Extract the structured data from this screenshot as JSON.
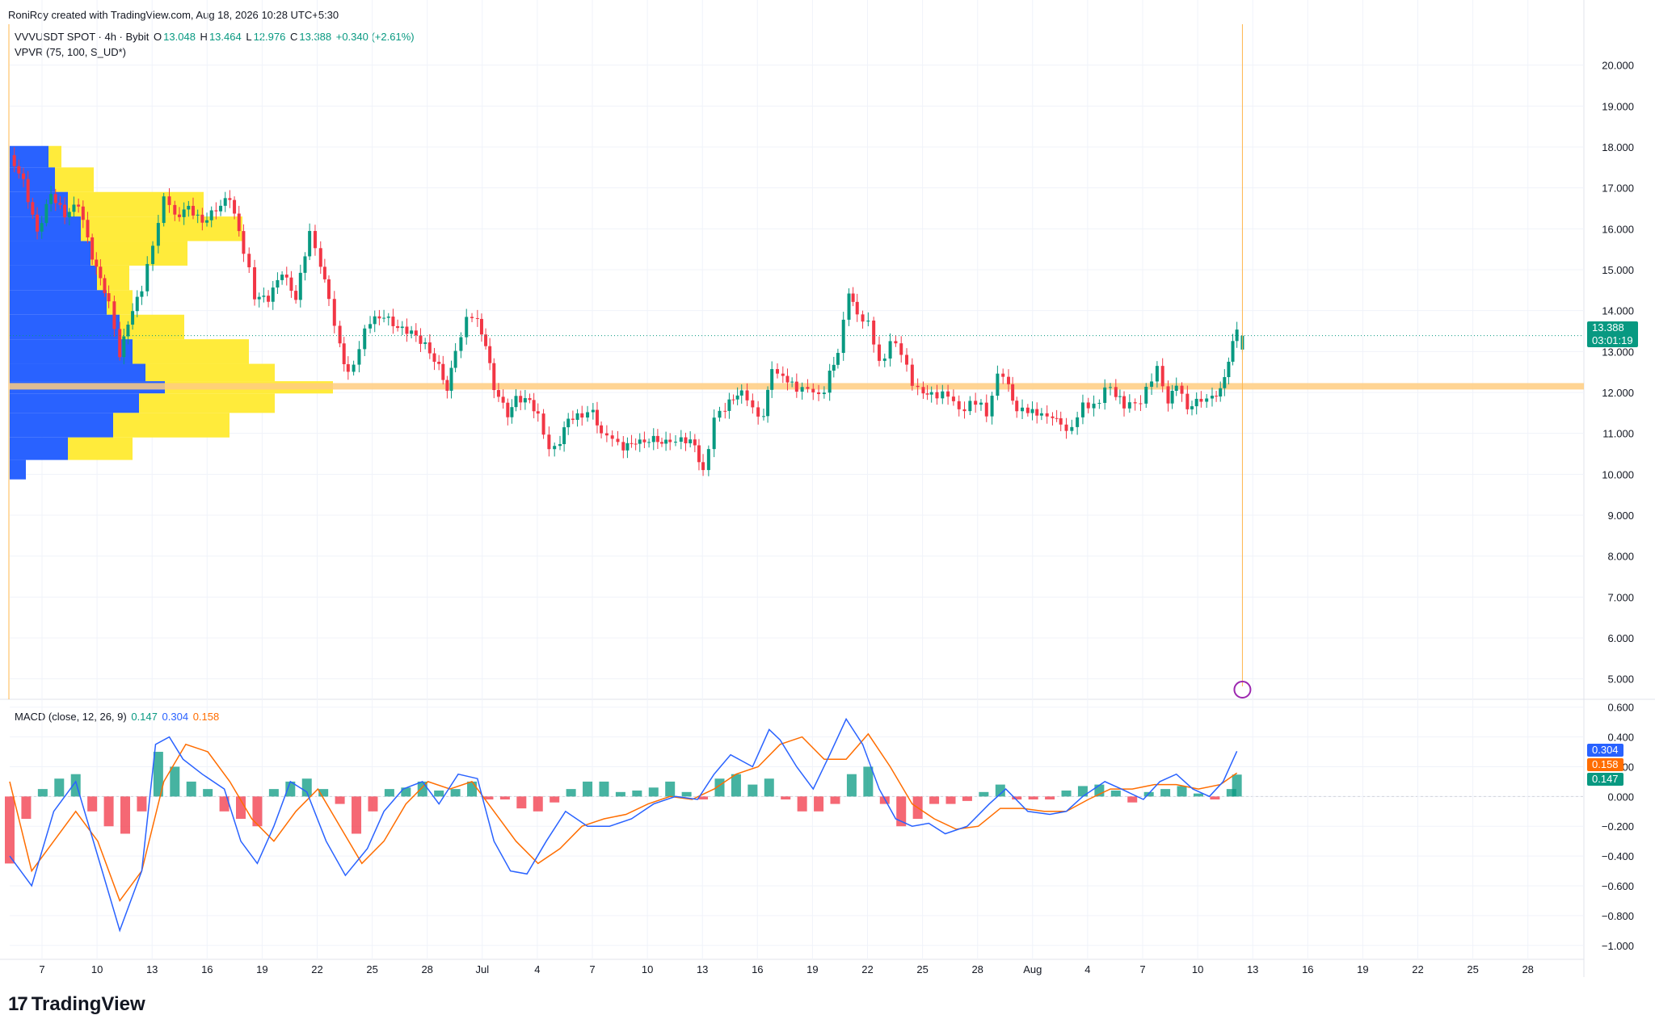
{
  "header": {
    "text": "RoniRoy created with TradingView.com, Aug 18, 2026 10:28 UTC+5:30"
  },
  "legend_main": {
    "symbol": "VVVUSDT SPOT · 4h · Bybit",
    "o_label": "O",
    "o": "13.048",
    "h_label": "H",
    "h": "13.464",
    "l_label": "L",
    "l": "12.976",
    "c_label": "C",
    "c": "13.388",
    "change": "+0.340 (+2.61%)"
  },
  "legend_vpvr": {
    "text": "VPVR (75, 100, S_UD*)"
  },
  "legend_macd": {
    "name": "MACD (close, 12, 26, 9)",
    "hist": "0.147",
    "macd": "0.304",
    "signal": "0.158"
  },
  "price_tag": {
    "price": "13.388",
    "countdown": "03:01:19"
  },
  "macd_tags": {
    "macd": "0.304",
    "signal": "0.158",
    "hist": "0.147"
  },
  "colors": {
    "up": "#089981",
    "down": "#f23645",
    "macd": "#2962ff",
    "signal": "#ff6d00",
    "vp_up": "#2962ff",
    "vp_down": "#ffeb3b",
    "poc": "#ffcc80",
    "grid": "#f0f3fa"
  },
  "logo": {
    "mark": "17",
    "text": "TradingView"
  },
  "chart_data": [
    {
      "type": "candlestick",
      "title": "VVVUSDT SPOT · 4h · Bybit",
      "ylim": [
        4.5,
        21.0
      ],
      "y_ticks": [
        "20.000",
        "19.000",
        "18.000",
        "17.000",
        "16.000",
        "15.000",
        "14.000",
        "13.000",
        "12.000",
        "11.000",
        "10.000",
        "9.000",
        "8.000",
        "7.000",
        "6.000",
        "5.000"
      ],
      "x_ticks": [
        "7",
        "10",
        "13",
        "16",
        "19",
        "22",
        "25",
        "28",
        "Jul",
        "4",
        "7",
        "10",
        "13",
        "16",
        "19",
        "22",
        "25",
        "28",
        "Aug",
        "4",
        "7",
        "10",
        "13",
        "16",
        "19",
        "22",
        "25",
        "28"
      ],
      "close_path": [
        [
          0,
          17.8
        ],
        [
          0.5,
          17.2
        ],
        [
          1.0,
          16.0
        ],
        [
          1.5,
          17.0
        ],
        [
          2.0,
          16.5
        ],
        [
          2.5,
          16.8
        ],
        [
          3.0,
          15.5
        ],
        [
          3.6,
          14.0
        ],
        [
          4.0,
          13.0
        ],
        [
          4.3,
          13.6
        ],
        [
          4.8,
          14.4
        ],
        [
          5.2,
          15.8
        ],
        [
          5.6,
          16.7
        ],
        [
          6.0,
          16.2
        ],
        [
          6.5,
          16.4
        ],
        [
          7.0,
          16.0
        ],
        [
          7.5,
          16.3
        ],
        [
          8.0,
          16.6
        ],
        [
          8.5,
          15.3
        ],
        [
          8.9,
          14.4
        ],
        [
          9.4,
          14.3
        ],
        [
          9.9,
          14.9
        ],
        [
          10.4,
          14.2
        ],
        [
          10.9,
          15.8
        ],
        [
          11.3,
          15.3
        ],
        [
          11.6,
          14.3
        ],
        [
          12.0,
          13.3
        ],
        [
          12.3,
          12.6
        ],
        [
          12.7,
          13.1
        ],
        [
          13.1,
          13.6
        ],
        [
          13.6,
          13.7
        ],
        [
          14.1,
          13.4
        ],
        [
          14.6,
          13.3
        ],
        [
          15.1,
          13.0
        ],
        [
          15.6,
          12.5
        ],
        [
          15.9,
          12.2
        ],
        [
          16.2,
          13.2
        ],
        [
          16.6,
          13.8
        ],
        [
          17.0,
          13.6
        ],
        [
          17.3,
          13.0
        ],
        [
          17.6,
          12.2
        ],
        [
          18.1,
          11.6
        ],
        [
          18.4,
          12.0
        ],
        [
          18.9,
          11.9
        ],
        [
          19.2,
          11.3
        ],
        [
          19.6,
          10.8
        ],
        [
          20.0,
          10.7
        ],
        [
          20.3,
          11.5
        ],
        [
          20.8,
          11.6
        ],
        [
          21.2,
          11.4
        ],
        [
          21.5,
          11.0
        ],
        [
          21.9,
          10.7
        ],
        [
          22.3,
          10.8
        ],
        [
          22.9,
          10.6
        ],
        [
          23.4,
          10.7
        ],
        [
          24.0,
          11.0
        ],
        [
          24.4,
          10.8
        ],
        [
          24.9,
          10.7
        ],
        [
          25.2,
          10.2
        ],
        [
          25.6,
          11.2
        ],
        [
          26.0,
          11.6
        ],
        [
          26.3,
          11.7
        ],
        [
          26.6,
          11.9
        ],
        [
          27.0,
          11.5
        ],
        [
          27.4,
          11.6
        ],
        [
          27.7,
          12.7
        ],
        [
          28.1,
          12.5
        ],
        [
          28.6,
          12.2
        ],
        [
          29.0,
          11.9
        ],
        [
          29.4,
          12.0
        ],
        [
          29.8,
          12.5
        ],
        [
          30.1,
          13.2
        ],
        [
          30.5,
          14.4
        ],
        [
          30.8,
          14.0
        ],
        [
          31.2,
          13.5
        ],
        [
          31.6,
          12.8
        ],
        [
          32.0,
          13.3
        ],
        [
          32.4,
          12.8
        ],
        [
          32.8,
          12.4
        ],
        [
          33.2,
          12.0
        ],
        [
          33.5,
          12.1
        ],
        [
          33.9,
          11.8
        ],
        [
          34.3,
          11.8
        ],
        [
          34.7,
          11.7
        ],
        [
          35.1,
          11.6
        ],
        [
          35.5,
          11.6
        ],
        [
          35.9,
          12.5
        ],
        [
          36.3,
          12.0
        ],
        [
          36.6,
          11.4
        ],
        [
          37.0,
          11.5
        ],
        [
          37.5,
          11.4
        ],
        [
          37.9,
          11.6
        ],
        [
          38.2,
          11.3
        ],
        [
          38.6,
          11.2
        ],
        [
          39.0,
          11.5
        ],
        [
          39.4,
          11.8
        ],
        [
          39.8,
          12.1
        ],
        [
          40.2,
          11.8
        ],
        [
          40.5,
          11.5
        ],
        [
          40.9,
          11.7
        ],
        [
          41.3,
          12.2
        ],
        [
          41.7,
          12.4
        ],
        [
          42.1,
          11.8
        ],
        [
          42.4,
          12.1
        ],
        [
          42.8,
          11.8
        ],
        [
          43.3,
          12.0
        ],
        [
          43.7,
          11.9
        ],
        [
          44.0,
          12.2
        ],
        [
          44.3,
          12.9
        ],
        [
          44.6,
          13.388
        ]
      ],
      "ohlc_last": {
        "open": 13.048,
        "high": 13.464,
        "low": 12.976,
        "close": 13.388
      },
      "volume_profile": {
        "rows": 75,
        "poc_price": 12.15,
        "profile_levels": [
          {
            "price": 17.8,
            "up": 0.12,
            "down": 0.04
          },
          {
            "price": 17.2,
            "up": 0.14,
            "down": 0.12
          },
          {
            "price": 16.6,
            "up": 0.18,
            "down": 0.42
          },
          {
            "price": 16.0,
            "up": 0.22,
            "down": 0.5
          },
          {
            "price": 15.4,
            "up": 0.25,
            "down": 0.3
          },
          {
            "price": 14.8,
            "up": 0.27,
            "down": 0.1
          },
          {
            "price": 14.2,
            "up": 0.3,
            "down": 0.08
          },
          {
            "price": 13.6,
            "up": 0.34,
            "down": 0.2
          },
          {
            "price": 13.0,
            "up": 0.38,
            "down": 0.36
          },
          {
            "price": 12.4,
            "up": 0.42,
            "down": 0.4
          },
          {
            "price": 12.15,
            "up": 0.48,
            "down": 0.52
          },
          {
            "price": 11.8,
            "up": 0.4,
            "down": 0.42
          },
          {
            "price": 11.2,
            "up": 0.32,
            "down": 0.36
          },
          {
            "price": 10.6,
            "up": 0.18,
            "down": 0.2
          },
          {
            "price": 10.1,
            "up": 0.05,
            "down": 0.0
          }
        ]
      }
    },
    {
      "type": "line",
      "title": "MACD (close, 12, 26, 9)",
      "ylim": [
        -1.05,
        0.62
      ],
      "y_ticks": [
        "0.600",
        "0.400",
        "0.200",
        "0.000",
        "−0.200",
        "−0.400",
        "−0.600",
        "−0.800",
        "−1.000"
      ],
      "series": [
        {
          "name": "MACD",
          "x": [
            0,
            0.8,
            1.6,
            2.4,
            3.2,
            4.0,
            4.8,
            5.3,
            5.8,
            6.3,
            7.0,
            7.8,
            8.4,
            9.0,
            9.6,
            10.2,
            10.8,
            11.5,
            12.2,
            13.0,
            13.6,
            14.3,
            15.0,
            15.6,
            16.3,
            17.0,
            17.6,
            18.2,
            18.8,
            19.5,
            20.2,
            21.0,
            21.8,
            22.6,
            23.4,
            24.2,
            25.0,
            25.6,
            26.2,
            27.0,
            27.6,
            28.0,
            28.6,
            29.2,
            29.8,
            30.4,
            31.0,
            31.6,
            32.2,
            32.8,
            33.4,
            34.0,
            34.8,
            35.6,
            36.2,
            37.0,
            37.8,
            38.4,
            39.0,
            39.8,
            40.4,
            41.2,
            41.8,
            42.4,
            43.0,
            43.6,
            44.1,
            44.6
          ],
          "values": [
            -0.4,
            -0.6,
            -0.1,
            0.1,
            -0.4,
            -0.9,
            -0.5,
            0.35,
            0.4,
            0.25,
            0.15,
            0.05,
            -0.3,
            -0.45,
            -0.2,
            0.1,
            0.03,
            -0.3,
            -0.53,
            -0.35,
            -0.1,
            0.05,
            0.1,
            -0.05,
            0.15,
            0.12,
            -0.3,
            -0.5,
            -0.52,
            -0.3,
            -0.1,
            -0.2,
            -0.2,
            -0.15,
            -0.05,
            0.0,
            -0.02,
            0.15,
            0.28,
            0.2,
            0.45,
            0.38,
            0.2,
            0.05,
            0.28,
            0.52,
            0.35,
            0.05,
            -0.15,
            -0.2,
            -0.18,
            -0.25,
            -0.2,
            -0.05,
            0.05,
            -0.1,
            -0.12,
            -0.1,
            0.0,
            0.1,
            0.05,
            -0.02,
            0.1,
            0.15,
            0.05,
            0.0,
            0.1,
            0.304
          ]
        },
        {
          "name": "Signal",
          "x": [
            0,
            0.8,
            1.6,
            2.4,
            3.2,
            4.0,
            4.8,
            5.6,
            6.4,
            7.2,
            8.0,
            8.8,
            9.6,
            10.4,
            11.2,
            12.0,
            12.8,
            13.6,
            14.4,
            15.2,
            16.0,
            16.8,
            17.6,
            18.4,
            19.2,
            20.0,
            20.8,
            21.6,
            22.4,
            23.2,
            24.0,
            24.8,
            25.6,
            26.4,
            27.2,
            28.0,
            28.8,
            29.6,
            30.4,
            31.2,
            32.0,
            32.8,
            33.6,
            34.4,
            35.2,
            36.0,
            36.8,
            37.6,
            38.4,
            39.2,
            40.0,
            40.8,
            41.6,
            42.4,
            43.2,
            44.0,
            44.6
          ],
          "values": [
            0.1,
            -0.5,
            -0.3,
            -0.1,
            -0.3,
            -0.7,
            -0.5,
            0.1,
            0.35,
            0.3,
            0.1,
            -0.15,
            -0.3,
            -0.1,
            0.05,
            -0.2,
            -0.45,
            -0.3,
            -0.05,
            0.1,
            0.05,
            0.1,
            -0.1,
            -0.3,
            -0.45,
            -0.35,
            -0.2,
            -0.15,
            -0.12,
            -0.05,
            0.0,
            -0.02,
            0.05,
            0.15,
            0.2,
            0.35,
            0.4,
            0.25,
            0.25,
            0.42,
            0.2,
            -0.05,
            -0.15,
            -0.22,
            -0.2,
            -0.08,
            -0.08,
            -0.1,
            -0.1,
            -0.02,
            0.05,
            0.05,
            0.08,
            0.08,
            0.05,
            0.08,
            0.158
          ]
        },
        {
          "name": "Histogram",
          "x": [
            0,
            0.6,
            1.2,
            1.8,
            2.4,
            3.0,
            3.6,
            4.2,
            4.8,
            5.4,
            6.0,
            6.6,
            7.2,
            7.8,
            8.4,
            9.0,
            9.6,
            10.2,
            10.8,
            11.4,
            12.0,
            12.6,
            13.2,
            13.8,
            14.4,
            15.0,
            15.6,
            16.2,
            16.8,
            17.4,
            18.0,
            18.6,
            19.2,
            19.8,
            20.4,
            21.0,
            21.6,
            22.2,
            22.8,
            23.4,
            24.0,
            24.6,
            25.2,
            25.8,
            26.4,
            27.0,
            27.6,
            28.2,
            28.8,
            29.4,
            30.0,
            30.6,
            31.2,
            31.8,
            32.4,
            33.0,
            33.6,
            34.2,
            34.8,
            35.4,
            36.0,
            36.6,
            37.2,
            37.8,
            38.4,
            39.0,
            39.6,
            40.2,
            40.8,
            41.4,
            42.0,
            42.6,
            43.2,
            43.8,
            44.4,
            44.6
          ],
          "values": [
            -0.45,
            -0.15,
            0.05,
            0.12,
            0.15,
            -0.1,
            -0.2,
            -0.25,
            -0.1,
            0.3,
            0.2,
            0.1,
            0.05,
            -0.1,
            -0.15,
            -0.2,
            0.05,
            0.1,
            0.12,
            0.05,
            -0.05,
            -0.25,
            -0.1,
            0.05,
            0.06,
            0.1,
            0.04,
            0.05,
            0.1,
            -0.02,
            -0.02,
            -0.08,
            -0.1,
            -0.04,
            0.05,
            0.1,
            0.1,
            0.03,
            0.04,
            0.06,
            0.1,
            0.03,
            -0.02,
            0.12,
            0.15,
            0.08,
            0.12,
            -0.02,
            -0.1,
            -0.1,
            -0.05,
            0.15,
            0.2,
            -0.05,
            -0.2,
            -0.15,
            -0.05,
            -0.05,
            -0.03,
            0.03,
            0.08,
            -0.02,
            -0.02,
            -0.02,
            0.04,
            0.07,
            0.08,
            0.04,
            -0.04,
            0.03,
            0.05,
            0.07,
            0.02,
            -0.02,
            0.05,
            0.147
          ]
        }
      ]
    }
  ]
}
